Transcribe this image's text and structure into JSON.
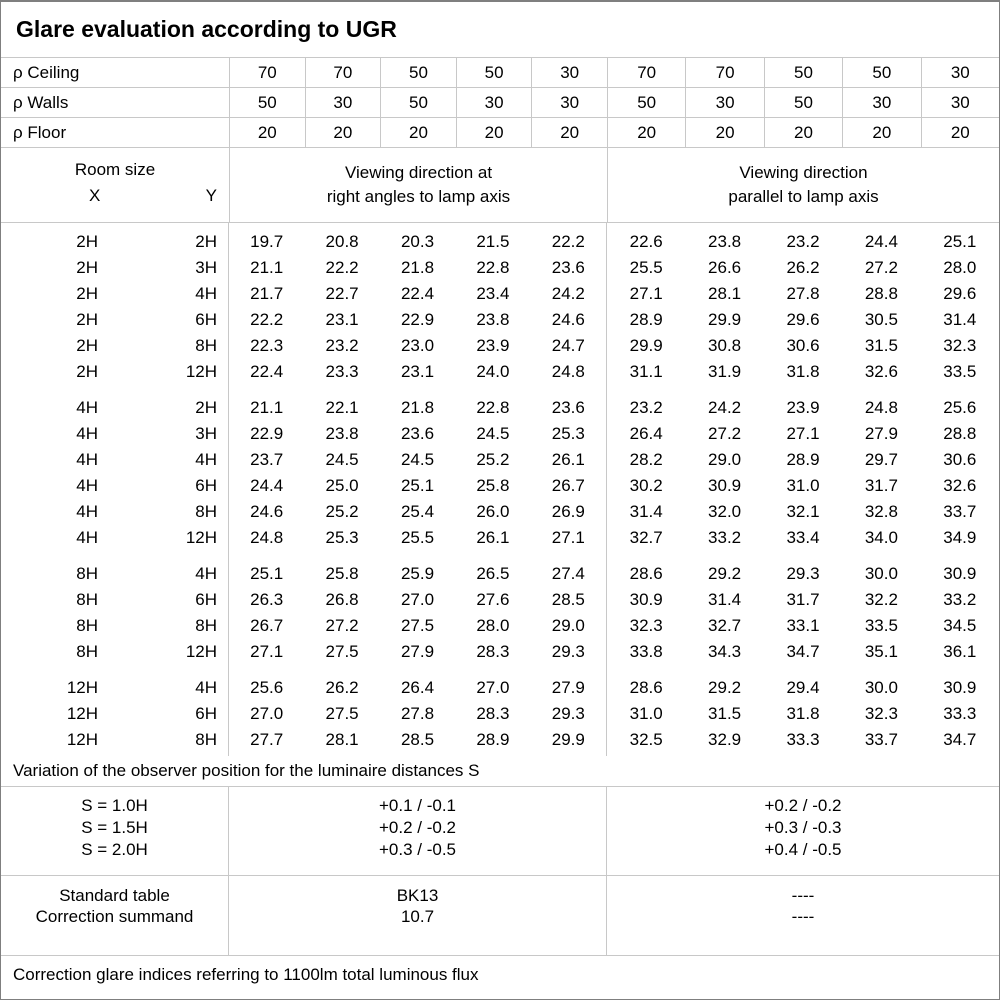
{
  "title": "Glare evaluation according to UGR",
  "reflectance": {
    "rows": [
      {
        "label": "ρ Ceiling",
        "values": [
          "70",
          "70",
          "50",
          "50",
          "30",
          "70",
          "70",
          "50",
          "50",
          "30"
        ]
      },
      {
        "label": "ρ Walls",
        "values": [
          "50",
          "30",
          "50",
          "30",
          "30",
          "50",
          "30",
          "50",
          "30",
          "30"
        ]
      },
      {
        "label": "ρ Floor",
        "values": [
          "20",
          "20",
          "20",
          "20",
          "20",
          "20",
          "20",
          "20",
          "20",
          "20"
        ]
      }
    ]
  },
  "header": {
    "room_size": "Room size",
    "x": "X",
    "y": "Y",
    "group_a": "Viewing direction at\nright angles to lamp axis",
    "group_b": "Viewing direction\nparallel to lamp axis"
  },
  "ugr_blocks": [
    {
      "rows": [
        {
          "x": "2H",
          "y": "2H",
          "right_angles": [
            "19.7",
            "20.8",
            "20.3",
            "21.5",
            "22.2"
          ],
          "parallel": [
            "22.6",
            "23.8",
            "23.2",
            "24.4",
            "25.1"
          ]
        },
        {
          "x": "2H",
          "y": "3H",
          "right_angles": [
            "21.1",
            "22.2",
            "21.8",
            "22.8",
            "23.6"
          ],
          "parallel": [
            "25.5",
            "26.6",
            "26.2",
            "27.2",
            "28.0"
          ]
        },
        {
          "x": "2H",
          "y": "4H",
          "right_angles": [
            "21.7",
            "22.7",
            "22.4",
            "23.4",
            "24.2"
          ],
          "parallel": [
            "27.1",
            "28.1",
            "27.8",
            "28.8",
            "29.6"
          ]
        },
        {
          "x": "2H",
          "y": "6H",
          "right_angles": [
            "22.2",
            "23.1",
            "22.9",
            "23.8",
            "24.6"
          ],
          "parallel": [
            "28.9",
            "29.9",
            "29.6",
            "30.5",
            "31.4"
          ]
        },
        {
          "x": "2H",
          "y": "8H",
          "right_angles": [
            "22.3",
            "23.2",
            "23.0",
            "23.9",
            "24.7"
          ],
          "parallel": [
            "29.9",
            "30.8",
            "30.6",
            "31.5",
            "32.3"
          ]
        },
        {
          "x": "2H",
          "y": "12H",
          "right_angles": [
            "22.4",
            "23.3",
            "23.1",
            "24.0",
            "24.8"
          ],
          "parallel": [
            "31.1",
            "31.9",
            "31.8",
            "32.6",
            "33.5"
          ]
        }
      ]
    },
    {
      "rows": [
        {
          "x": "4H",
          "y": "2H",
          "right_angles": [
            "21.1",
            "22.1",
            "21.8",
            "22.8",
            "23.6"
          ],
          "parallel": [
            "23.2",
            "24.2",
            "23.9",
            "24.8",
            "25.6"
          ]
        },
        {
          "x": "4H",
          "y": "3H",
          "right_angles": [
            "22.9",
            "23.8",
            "23.6",
            "24.5",
            "25.3"
          ],
          "parallel": [
            "26.4",
            "27.2",
            "27.1",
            "27.9",
            "28.8"
          ]
        },
        {
          "x": "4H",
          "y": "4H",
          "right_angles": [
            "23.7",
            "24.5",
            "24.5",
            "25.2",
            "26.1"
          ],
          "parallel": [
            "28.2",
            "29.0",
            "28.9",
            "29.7",
            "30.6"
          ]
        },
        {
          "x": "4H",
          "y": "6H",
          "right_angles": [
            "24.4",
            "25.0",
            "25.1",
            "25.8",
            "26.7"
          ],
          "parallel": [
            "30.2",
            "30.9",
            "31.0",
            "31.7",
            "32.6"
          ]
        },
        {
          "x": "4H",
          "y": "8H",
          "right_angles": [
            "24.6",
            "25.2",
            "25.4",
            "26.0",
            "26.9"
          ],
          "parallel": [
            "31.4",
            "32.0",
            "32.1",
            "32.8",
            "33.7"
          ]
        },
        {
          "x": "4H",
          "y": "12H",
          "right_angles": [
            "24.8",
            "25.3",
            "25.5",
            "26.1",
            "27.1"
          ],
          "parallel": [
            "32.7",
            "33.2",
            "33.4",
            "34.0",
            "34.9"
          ]
        }
      ]
    },
    {
      "rows": [
        {
          "x": "8H",
          "y": "4H",
          "right_angles": [
            "25.1",
            "25.8",
            "25.9",
            "26.5",
            "27.4"
          ],
          "parallel": [
            "28.6",
            "29.2",
            "29.3",
            "30.0",
            "30.9"
          ]
        },
        {
          "x": "8H",
          "y": "6H",
          "right_angles": [
            "26.3",
            "26.8",
            "27.0",
            "27.6",
            "28.5"
          ],
          "parallel": [
            "30.9",
            "31.4",
            "31.7",
            "32.2",
            "33.2"
          ]
        },
        {
          "x": "8H",
          "y": "8H",
          "right_angles": [
            "26.7",
            "27.2",
            "27.5",
            "28.0",
            "29.0"
          ],
          "parallel": [
            "32.3",
            "32.7",
            "33.1",
            "33.5",
            "34.5"
          ]
        },
        {
          "x": "8H",
          "y": "12H",
          "right_angles": [
            "27.1",
            "27.5",
            "27.9",
            "28.3",
            "29.3"
          ],
          "parallel": [
            "33.8",
            "34.3",
            "34.7",
            "35.1",
            "36.1"
          ]
        }
      ]
    },
    {
      "rows": [
        {
          "x": "12H",
          "y": "4H",
          "right_angles": [
            "25.6",
            "26.2",
            "26.4",
            "27.0",
            "27.9"
          ],
          "parallel": [
            "28.6",
            "29.2",
            "29.4",
            "30.0",
            "30.9"
          ]
        },
        {
          "x": "12H",
          "y": "6H",
          "right_angles": [
            "27.0",
            "27.5",
            "27.8",
            "28.3",
            "29.3"
          ],
          "parallel": [
            "31.0",
            "31.5",
            "31.8",
            "32.3",
            "33.3"
          ]
        },
        {
          "x": "12H",
          "y": "8H",
          "right_angles": [
            "27.7",
            "28.1",
            "28.5",
            "28.9",
            "29.9"
          ],
          "parallel": [
            "32.5",
            "32.9",
            "33.3",
            "33.7",
            "34.7"
          ]
        }
      ]
    }
  ],
  "variation_note": "Variation of the observer position for the luminaire distances S",
  "variation_rows": [
    {
      "label": "S = 1.0H",
      "right_angles": "+0.1 / -0.1",
      "parallel": "+0.2 / -0.2"
    },
    {
      "label": "S = 1.5H",
      "right_angles": "+0.2 / -0.2",
      "parallel": "+0.3 / -0.3"
    },
    {
      "label": "S = 2.0H",
      "right_angles": "+0.3 / -0.5",
      "parallel": "+0.4 / -0.5"
    }
  ],
  "summary_rows": [
    {
      "label": "Standard table",
      "right_angles": "BK13",
      "parallel": "----"
    },
    {
      "label": "Correction summand",
      "right_angles": "10.7",
      "parallel": "----"
    }
  ],
  "footer_note": "Correction glare indices referring to 1100lm total luminous flux"
}
